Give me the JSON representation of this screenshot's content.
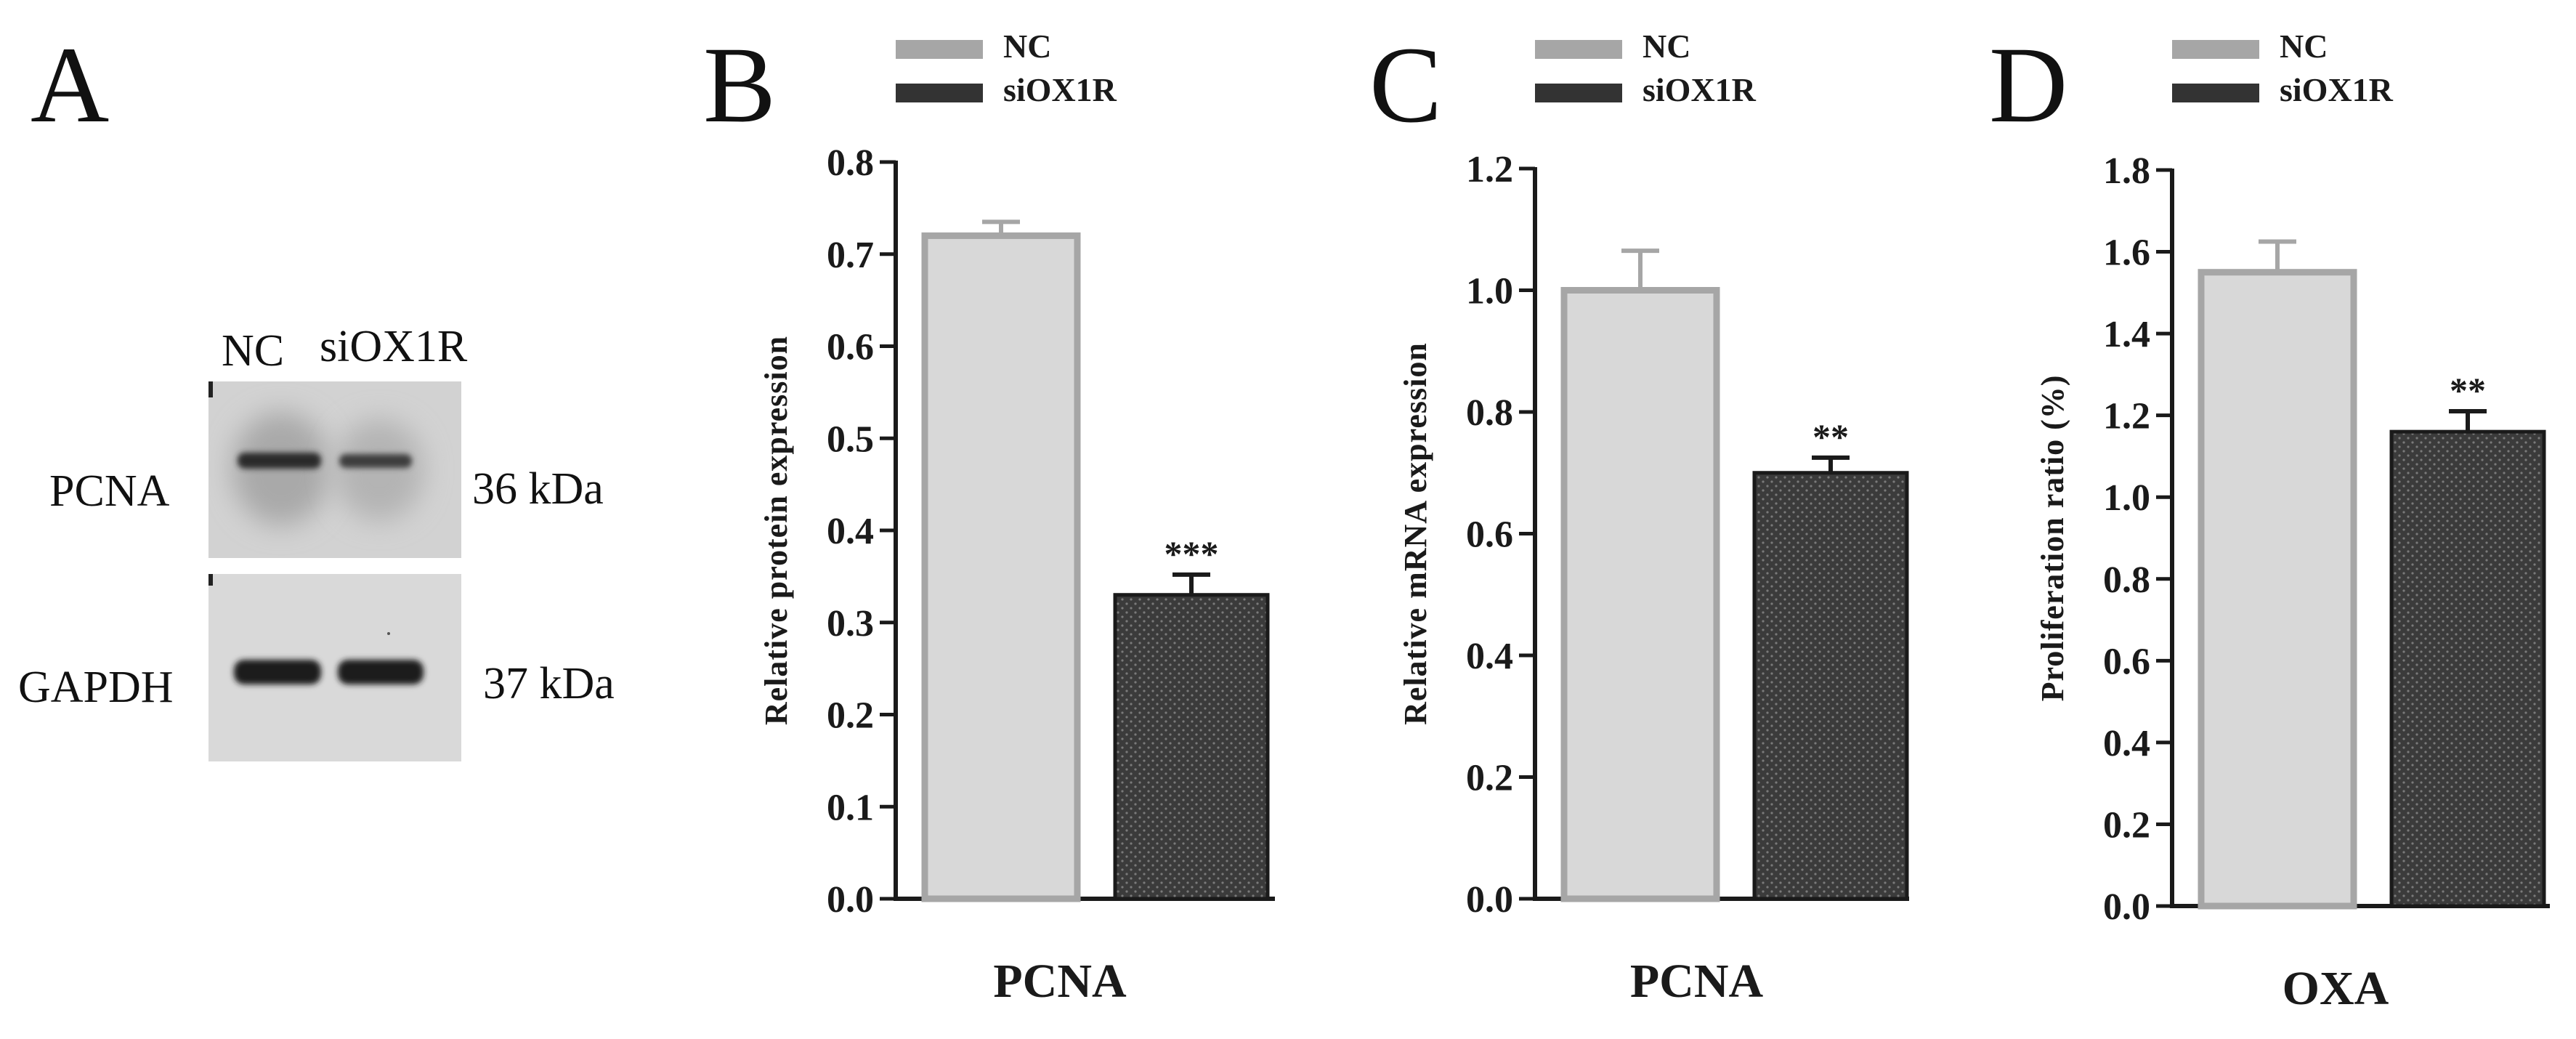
{
  "panel_a": {
    "letter": "A",
    "lane_labels": [
      "NC",
      "siOX1R"
    ],
    "blots": [
      {
        "name": "PCNA",
        "size": "36 kDa"
      },
      {
        "name": "GAPDH",
        "size": "37 kDa"
      }
    ]
  },
  "colors": {
    "nc_fill": "#d8d8d8",
    "nc_stroke": "#a6a6a6",
    "si_fill": "#3b3b3b",
    "si_dot": "#7a7a7a",
    "axis": "#1a1a1a"
  },
  "chart_data": [
    {
      "panel": "B",
      "type": "bar",
      "categories": [
        "NC",
        "siOX1R"
      ],
      "values": [
        0.72,
        0.33
      ],
      "errors": [
        0.015,
        0.022
      ],
      "significance": [
        "",
        "***"
      ],
      "legend": [
        "NC",
        "siOX1R"
      ],
      "xlabel": "PCNA",
      "ylabel": "Relative protein expression",
      "ylim": [
        0,
        0.8
      ],
      "yticks": [
        "0.0",
        "0.1",
        "0.2",
        "0.3",
        "0.4",
        "0.5",
        "0.6",
        "0.7",
        "0.8"
      ]
    },
    {
      "panel": "C",
      "type": "bar",
      "categories": [
        "NC",
        "siOX1R"
      ],
      "values": [
        1.0,
        0.7
      ],
      "errors": [
        0.065,
        0.025
      ],
      "significance": [
        "",
        "**"
      ],
      "legend": [
        "NC",
        "siOX1R"
      ],
      "xlabel": "PCNA",
      "ylabel": "Relative mRNA expression",
      "ylim": [
        0,
        1.2
      ],
      "yticks": [
        "0.0",
        "0.2",
        "0.4",
        "0.6",
        "0.8",
        "1.0",
        "1.2"
      ]
    },
    {
      "panel": "D",
      "type": "bar",
      "categories": [
        "NC",
        "siOX1R"
      ],
      "values": [
        1.55,
        1.16
      ],
      "errors": [
        0.075,
        0.05
      ],
      "significance": [
        "",
        "**"
      ],
      "legend": [
        "NC",
        "siOX1R"
      ],
      "xlabel": "OXA",
      "ylabel": "Proliferation ratio (%)",
      "ylim": [
        0,
        1.8
      ],
      "yticks": [
        "0.0",
        "0.2",
        "0.4",
        "0.6",
        "0.8",
        "1.0",
        "1.2",
        "1.4",
        "1.6",
        "1.8"
      ]
    }
  ]
}
